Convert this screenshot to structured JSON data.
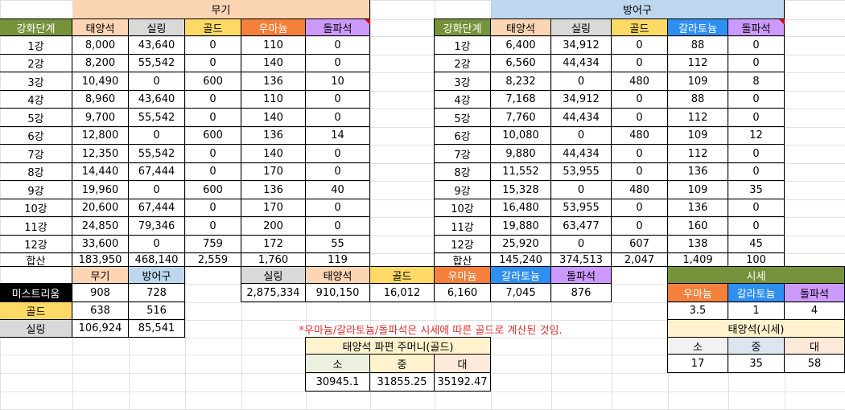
{
  "colors": {
    "green": "#76933c",
    "peach": "#fcd5b4",
    "lightgray": "#d9d9d9",
    "yellow": "#ffd966",
    "orange": "#f4803c",
    "lavender": "#cc99ff",
    "lightblue": "#bdd7ee",
    "blue": "#2e8ff0",
    "black": "#000000",
    "lightgreen": "#ebf1de",
    "lightyellow": "#fff2cc",
    "lightpink": "#fde9d9",
    "palegray": "#f2f2f2",
    "paleblue": "#dce6f1",
    "note_red": "#e03030"
  },
  "weapon": {
    "title": "무기",
    "headers": [
      {
        "text": "강화단계",
        "bg": "green",
        "fg": "white"
      },
      {
        "text": "태양석",
        "bg": "peach"
      },
      {
        "text": "실링",
        "bg": "lightgray"
      },
      {
        "text": "골드",
        "bg": "yellow"
      },
      {
        "text": "우마늄",
        "bg": "orange",
        "fg": "white"
      },
      {
        "text": "돌파석",
        "bg": "lavender"
      }
    ],
    "rows": [
      [
        "1강",
        "8,000",
        "43,640",
        "0",
        "110",
        "0"
      ],
      [
        "2강",
        "8,200",
        "55,542",
        "0",
        "140",
        "0"
      ],
      [
        "3강",
        "10,490",
        "0",
        "600",
        "136",
        "10"
      ],
      [
        "4강",
        "8,960",
        "43,640",
        "0",
        "110",
        "0"
      ],
      [
        "5강",
        "9,700",
        "55,542",
        "0",
        "140",
        "0"
      ],
      [
        "6강",
        "12,800",
        "0",
        "600",
        "136",
        "14"
      ],
      [
        "7강",
        "12,350",
        "55,542",
        "0",
        "140",
        "0"
      ],
      [
        "8강",
        "14,440",
        "67,444",
        "0",
        "170",
        "0"
      ],
      [
        "9강",
        "19,960",
        "0",
        "600",
        "136",
        "40"
      ],
      [
        "10강",
        "20,600",
        "67,444",
        "0",
        "170",
        "0"
      ],
      [
        "11강",
        "24,850",
        "79,346",
        "0",
        "200",
        "0"
      ],
      [
        "12강",
        "33,600",
        "0",
        "759",
        "172",
        "55"
      ],
      [
        "합산",
        "183,950",
        "468,140",
        "2,559",
        "1,760",
        "119"
      ]
    ]
  },
  "armor": {
    "title": "방어구",
    "headers": [
      {
        "text": "강화단계",
        "bg": "green",
        "fg": "white"
      },
      {
        "text": "태양석",
        "bg": "peach"
      },
      {
        "text": "실링",
        "bg": "lightgray"
      },
      {
        "text": "골드",
        "bg": "yellow"
      },
      {
        "text": "갈라토늄",
        "bg": "blue",
        "fg": "white"
      },
      {
        "text": "돌파석",
        "bg": "lavender"
      }
    ],
    "rows": [
      [
        "1강",
        "6,400",
        "34,912",
        "0",
        "88",
        "0"
      ],
      [
        "2강",
        "6,560",
        "44,434",
        "0",
        "112",
        "0"
      ],
      [
        "3강",
        "8,232",
        "0",
        "480",
        "109",
        "8"
      ],
      [
        "4강",
        "7,168",
        "34,912",
        "0",
        "88",
        "0"
      ],
      [
        "5강",
        "7,760",
        "44,434",
        "0",
        "112",
        "0"
      ],
      [
        "6강",
        "10,080",
        "0",
        "480",
        "109",
        "12"
      ],
      [
        "7강",
        "9,880",
        "44,434",
        "0",
        "112",
        "0"
      ],
      [
        "8강",
        "11,552",
        "53,955",
        "0",
        "136",
        "0"
      ],
      [
        "9강",
        "15,328",
        "0",
        "480",
        "109",
        "35"
      ],
      [
        "10강",
        "16,480",
        "53,955",
        "0",
        "136",
        "0"
      ],
      [
        "11강",
        "19,880",
        "63,477",
        "0",
        "160",
        "0"
      ],
      [
        "12강",
        "25,920",
        "0",
        "607",
        "138",
        "45"
      ],
      [
        "합산",
        "145,240",
        "374,513",
        "2,047",
        "1,409",
        "100"
      ]
    ]
  },
  "summary": {
    "col_headers": [
      "무기",
      "방어구"
    ],
    "rows": [
      {
        "label": "미스트리움",
        "bg": "black",
        "fg": "white",
        "values": [
          "908",
          "728"
        ]
      },
      {
        "label": "골드",
        "bg": "yellow",
        "values": [
          "638",
          "516"
        ]
      },
      {
        "label": "실링",
        "bg": "lightgray",
        "values": [
          "106,924",
          "85,541"
        ]
      }
    ]
  },
  "totals": {
    "headers": [
      {
        "text": "실링",
        "bg": "lightgray"
      },
      {
        "text": "태양석",
        "bg": "peach"
      },
      {
        "text": "골드",
        "bg": "yellow"
      },
      {
        "text": "우마늄",
        "bg": "orange",
        "fg": "white"
      },
      {
        "text": "갈라토늄",
        "bg": "blue",
        "fg": "white"
      },
      {
        "text": "돌파석",
        "bg": "lavender"
      }
    ],
    "values": [
      "2,875,334",
      "910,150",
      "16,012",
      "6,160",
      "7,045",
      "876"
    ],
    "note": "*우마늄/갈라토늄/돌파석은 시세에 따른 골드로 계산된 것임."
  },
  "pouch": {
    "title": "태양석 파편 주머니(골드)",
    "headers": [
      "소",
      "중",
      "대"
    ],
    "values": [
      "30945.1",
      "31855.25",
      "35192.47"
    ]
  },
  "market": {
    "title": "시세",
    "headers": [
      {
        "text": "우마늄",
        "bg": "orange",
        "fg": "white"
      },
      {
        "text": "갈라토늄",
        "bg": "blue",
        "fg": "white"
      },
      {
        "text": "돌파석",
        "bg": "lavender"
      }
    ],
    "values": [
      "3.5",
      "1",
      "4"
    ],
    "sunstone_title": "태양석(시세)",
    "sunstone_headers": [
      "소",
      "중",
      "대"
    ],
    "sunstone_values": [
      "17",
      "35",
      "58"
    ]
  }
}
